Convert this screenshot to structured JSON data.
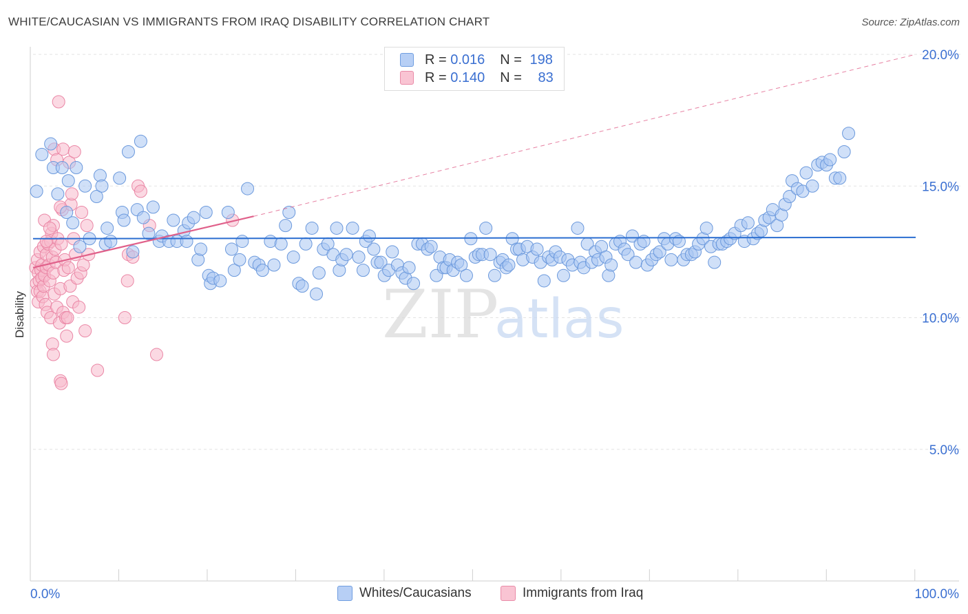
{
  "title": "WHITE/CAUCASIAN VS IMMIGRANTS FROM IRAQ DISABILITY CORRELATION CHART",
  "source": "Source: ZipAtlas.com",
  "watermark": {
    "zip": "ZIP",
    "atlas": "atlas"
  },
  "legend": {
    "rows": [
      {
        "r_label": "R =",
        "r_value": "0.016",
        "n_label": "N =",
        "n_value": "198"
      },
      {
        "r_label": "R =",
        "r_value": "0.140",
        "n_label": "N =",
        "n_value": "83"
      }
    ]
  },
  "bottom_legend": {
    "series1": "Whites/Caucasians",
    "series2": "Immigrants from Iraq"
  },
  "colors": {
    "blue_fill": "#a9c6f2",
    "blue_stroke": "#6a98dc",
    "blue_line": "#2a6dd0",
    "pink_fill": "#f7b9cc",
    "pink_stroke": "#ea86a5",
    "pink_line": "#e0608a",
    "tick_label": "#3a6fd1",
    "grid": "#e3e3e3"
  },
  "chart_data": {
    "type": "scatter",
    "title": "WHITE/CAUCASIAN VS IMMIGRANTS FROM IRAQ DISABILITY CORRELATION CHART",
    "xlabel": "",
    "ylabel": "Disability",
    "xlim": [
      0,
      100
    ],
    "ylim": [
      0,
      21
    ],
    "x_tick_labels": {
      "left": "0.0%",
      "right": "100.0%"
    },
    "y_ticks": [
      {
        "value": 5,
        "label": "5.0%"
      },
      {
        "value": 10,
        "label": "10.0%"
      },
      {
        "value": 15,
        "label": "15.0%"
      },
      {
        "value": 20,
        "label": "20.0%"
      }
    ],
    "series": [
      {
        "name": "Whites/Caucasians",
        "R": 0.016,
        "N": 198,
        "trend": {
          "x": [
            0,
            100
          ],
          "y": [
            13.0,
            13.05
          ],
          "style": "solid"
        },
        "points": [
          [
            0.4,
            14.8
          ],
          [
            1,
            16.2
          ],
          [
            2,
            16.6
          ],
          [
            2.3,
            15.7
          ],
          [
            2.8,
            14.7
          ],
          [
            3.3,
            15.7
          ],
          [
            3.8,
            14.0
          ],
          [
            4,
            15.2
          ],
          [
            4.5,
            13.6
          ],
          [
            4.9,
            15.7
          ],
          [
            5.3,
            12.7
          ],
          [
            5.9,
            15.0
          ],
          [
            6.4,
            13.0
          ],
          [
            7.2,
            14.6
          ],
          [
            7.6,
            15.4
          ],
          [
            7.8,
            15.0
          ],
          [
            8.2,
            12.8
          ],
          [
            8.4,
            13.4
          ],
          [
            8.8,
            12.9
          ],
          [
            9.8,
            15.3
          ],
          [
            10.1,
            14.0
          ],
          [
            10.3,
            13.7
          ],
          [
            10.8,
            16.3
          ],
          [
            11.3,
            12.5
          ],
          [
            11.8,
            14.1
          ],
          [
            12.2,
            16.7
          ],
          [
            12.5,
            13.8
          ],
          [
            13.1,
            13.2
          ],
          [
            13.6,
            14.2
          ],
          [
            14.3,
            12.9
          ],
          [
            14.6,
            13.1
          ],
          [
            15.4,
            12.9
          ],
          [
            15.9,
            13.7
          ],
          [
            16.3,
            12.9
          ],
          [
            17.1,
            13.3
          ],
          [
            17.4,
            12.9
          ],
          [
            17.6,
            13.6
          ],
          [
            18.2,
            13.8
          ],
          [
            18.7,
            12.2
          ],
          [
            19,
            12.6
          ],
          [
            19.6,
            14.0
          ],
          [
            19.9,
            11.6
          ],
          [
            20.1,
            11.3
          ],
          [
            20.4,
            11.5
          ],
          [
            21.2,
            11.4
          ],
          [
            22.1,
            14.0
          ],
          [
            22.5,
            12.6
          ],
          [
            22.8,
            11.8
          ],
          [
            23.4,
            12.2
          ],
          [
            23.7,
            12.9
          ],
          [
            24.3,
            14.9
          ],
          [
            25.1,
            12.1
          ],
          [
            25.6,
            12.0
          ],
          [
            26,
            11.8
          ],
          [
            26.9,
            12.9
          ],
          [
            27.3,
            12.0
          ],
          [
            28.1,
            12.8
          ],
          [
            28.6,
            13.5
          ],
          [
            29,
            14.0
          ],
          [
            29.5,
            12.3
          ],
          [
            30.1,
            11.3
          ],
          [
            30.5,
            11.2
          ],
          [
            30.9,
            12.8
          ],
          [
            31.6,
            13.4
          ],
          [
            32.1,
            10.9
          ],
          [
            32.4,
            11.7
          ],
          [
            32.9,
            12.6
          ],
          [
            33.4,
            12.8
          ],
          [
            34,
            12.4
          ],
          [
            34.4,
            13.4
          ],
          [
            34.7,
            11.8
          ],
          [
            35,
            12.2
          ],
          [
            35.5,
            12.4
          ],
          [
            36.2,
            13.4
          ],
          [
            36.9,
            12.3
          ],
          [
            37.4,
            11.8
          ],
          [
            37.7,
            12.9
          ],
          [
            38.1,
            13.1
          ],
          [
            38.6,
            12.6
          ],
          [
            39,
            12.1
          ],
          [
            39.4,
            12.1
          ],
          [
            39.8,
            11.6
          ],
          [
            40.3,
            11.8
          ],
          [
            40.7,
            12.5
          ],
          [
            41.3,
            12.0
          ],
          [
            41.8,
            11.7
          ],
          [
            42.2,
            11.5
          ],
          [
            42.6,
            11.9
          ],
          [
            43.1,
            11.3
          ],
          [
            43.6,
            12.8
          ],
          [
            44.1,
            12.8
          ],
          [
            44.7,
            12.6
          ],
          [
            45.1,
            12.7
          ],
          [
            45.7,
            11.6
          ],
          [
            46.1,
            12.3
          ],
          [
            46.5,
            11.9
          ],
          [
            46.8,
            11.9
          ],
          [
            47.2,
            12.2
          ],
          [
            47.6,
            11.8
          ],
          [
            48.1,
            12.1
          ],
          [
            48.5,
            12.0
          ],
          [
            49.1,
            11.6
          ],
          [
            49.6,
            13.0
          ],
          [
            50.1,
            12.3
          ],
          [
            50.5,
            12.4
          ],
          [
            50.9,
            12.4
          ],
          [
            51.3,
            13.4
          ],
          [
            51.8,
            12.4
          ],
          [
            52.3,
            11.6
          ],
          [
            52.9,
            12.1
          ],
          [
            53.2,
            12.2
          ],
          [
            53.6,
            11.9
          ],
          [
            53.9,
            12.0
          ],
          [
            54.3,
            13.0
          ],
          [
            54.8,
            12.6
          ],
          [
            55.1,
            12.6
          ],
          [
            55.5,
            12.2
          ],
          [
            56,
            12.7
          ],
          [
            56.6,
            12.3
          ],
          [
            57.1,
            12.6
          ],
          [
            57.5,
            12.1
          ],
          [
            57.9,
            11.4
          ],
          [
            58.4,
            12.3
          ],
          [
            58.8,
            12.2
          ],
          [
            59.2,
            12.5
          ],
          [
            59.7,
            12.3
          ],
          [
            60.1,
            11.6
          ],
          [
            60.6,
            12.2
          ],
          [
            61.1,
            12.0
          ],
          [
            61.7,
            13.4
          ],
          [
            62,
            12.1
          ],
          [
            62.4,
            11.9
          ],
          [
            62.8,
            12.8
          ],
          [
            63.3,
            12.1
          ],
          [
            63.7,
            12.5
          ],
          [
            64,
            12.2
          ],
          [
            64.4,
            12.7
          ],
          [
            64.9,
            12.3
          ],
          [
            65.2,
            11.6
          ],
          [
            65.5,
            12.0
          ],
          [
            66,
            12.8
          ],
          [
            66.5,
            12.9
          ],
          [
            67,
            12.6
          ],
          [
            67.4,
            12.4
          ],
          [
            67.9,
            13.1
          ],
          [
            68.3,
            12.1
          ],
          [
            68.8,
            12.8
          ],
          [
            69.2,
            12.9
          ],
          [
            69.6,
            12.0
          ],
          [
            70.1,
            12.2
          ],
          [
            70.6,
            12.4
          ],
          [
            71,
            12.5
          ],
          [
            71.5,
            13.0
          ],
          [
            71.9,
            12.8
          ],
          [
            72.3,
            12.2
          ],
          [
            72.8,
            13.0
          ],
          [
            73.2,
            12.9
          ],
          [
            73.7,
            12.2
          ],
          [
            74.1,
            12.4
          ],
          [
            74.6,
            12.4
          ],
          [
            75,
            12.5
          ],
          [
            75.4,
            12.8
          ],
          [
            75.9,
            13.0
          ],
          [
            76.3,
            13.4
          ],
          [
            76.8,
            12.7
          ],
          [
            77.2,
            12.1
          ],
          [
            77.7,
            12.8
          ],
          [
            78.1,
            12.8
          ],
          [
            78.6,
            12.9
          ],
          [
            79,
            13.0
          ],
          [
            79.5,
            13.2
          ],
          [
            80.2,
            13.5
          ],
          [
            80.6,
            12.9
          ],
          [
            81,
            13.6
          ],
          [
            81.6,
            13.0
          ],
          [
            82.1,
            13.2
          ],
          [
            82.5,
            13.3
          ],
          [
            82.9,
            13.7
          ],
          [
            83.4,
            13.8
          ],
          [
            83.8,
            14.1
          ],
          [
            84.3,
            13.5
          ],
          [
            84.8,
            13.9
          ],
          [
            85.2,
            14.3
          ],
          [
            85.7,
            14.6
          ],
          [
            86,
            15.2
          ],
          [
            86.6,
            14.9
          ],
          [
            87.2,
            14.8
          ],
          [
            87.6,
            15.5
          ],
          [
            88.3,
            15.0
          ],
          [
            88.9,
            15.8
          ],
          [
            89.4,
            15.9
          ],
          [
            89.9,
            15.8
          ],
          [
            90.3,
            16.0
          ],
          [
            90.9,
            15.3
          ],
          [
            91.4,
            15.3
          ],
          [
            91.9,
            16.3
          ],
          [
            92.4,
            17.0
          ]
        ]
      },
      {
        "name": "Immigrants from Iraq",
        "R": 0.14,
        "N": 83,
        "trend": {
          "x": [
            0,
            25
          ],
          "y": [
            11.9,
            13.85
          ],
          "style": "solid",
          "extended_to": [
            100,
            20.0
          ],
          "extended_style": "dashed"
        },
        "points": [
          [
            0.3,
            11.9
          ],
          [
            0.4,
            11.3
          ],
          [
            0.5,
            12.2
          ],
          [
            0.5,
            11.0
          ],
          [
            0.6,
            10.6
          ],
          [
            0.6,
            11.7
          ],
          [
            0.7,
            11.4
          ],
          [
            0.8,
            12.5
          ],
          [
            0.8,
            11.0
          ],
          [
            0.9,
            11.8
          ],
          [
            1,
            12.0
          ],
          [
            1,
            11.5
          ],
          [
            1.1,
            10.8
          ],
          [
            1.2,
            12.7
          ],
          [
            1.2,
            11.2
          ],
          [
            1.3,
            11.6
          ],
          [
            1.4,
            10.5
          ],
          [
            1.5,
            11.9
          ],
          [
            1.5,
            12.4
          ],
          [
            1.6,
            10.2
          ],
          [
            1.7,
            12.8
          ],
          [
            1.8,
            12.0
          ],
          [
            1.9,
            11.4
          ],
          [
            2,
            12.9
          ],
          [
            2,
            10.0
          ],
          [
            2.1,
            13.2
          ],
          [
            2.2,
            12.3
          ],
          [
            2.2,
            9.0
          ],
          [
            2.3,
            11.7
          ],
          [
            2.4,
            10.9
          ],
          [
            2.5,
            12.6
          ],
          [
            2.6,
            12.1
          ],
          [
            2.7,
            10.4
          ],
          [
            2.8,
            13.0
          ],
          [
            3,
            9.8
          ],
          [
            3.1,
            11.1
          ],
          [
            3.2,
            12.8
          ],
          [
            3.3,
            14.1
          ],
          [
            3.4,
            10.2
          ],
          [
            3.5,
            11.8
          ],
          [
            3.6,
            12.2
          ],
          [
            3.7,
            10.0
          ],
          [
            3.8,
            9.3
          ],
          [
            3.9,
            10.0
          ],
          [
            4,
            11.9
          ],
          [
            4.2,
            11.2
          ],
          [
            4.3,
            14.3
          ],
          [
            4.5,
            10.6
          ],
          [
            4.6,
            13.0
          ],
          [
            4.8,
            12.4
          ],
          [
            5,
            11.5
          ],
          [
            5.2,
            10.4
          ],
          [
            5.4,
            11.7
          ],
          [
            5.5,
            14.0
          ],
          [
            5.7,
            12.0
          ],
          [
            5.9,
            9.5
          ],
          [
            6.1,
            13.5
          ],
          [
            6.3,
            12.4
          ],
          [
            1.3,
            13.7
          ],
          [
            1.5,
            12.9
          ],
          [
            2.4,
            16.4
          ],
          [
            2.7,
            16.0
          ],
          [
            2.9,
            18.2
          ],
          [
            3.1,
            14.2
          ],
          [
            3.4,
            16.4
          ],
          [
            4.1,
            15.9
          ],
          [
            4.4,
            14.7
          ],
          [
            4.7,
            16.3
          ],
          [
            2.3,
            13.5
          ],
          [
            1.9,
            13.4
          ],
          [
            3.1,
            7.6
          ],
          [
            3.2,
            7.5
          ],
          [
            2.3,
            8.6
          ],
          [
            7.3,
            8.0
          ],
          [
            10.4,
            10.0
          ],
          [
            10.7,
            11.4
          ],
          [
            10.8,
            12.4
          ],
          [
            11.3,
            12.3
          ],
          [
            11.9,
            15.0
          ],
          [
            12.2,
            14.8
          ],
          [
            13.2,
            13.5
          ],
          [
            14,
            8.6
          ],
          [
            22.6,
            13.7
          ]
        ]
      }
    ]
  }
}
